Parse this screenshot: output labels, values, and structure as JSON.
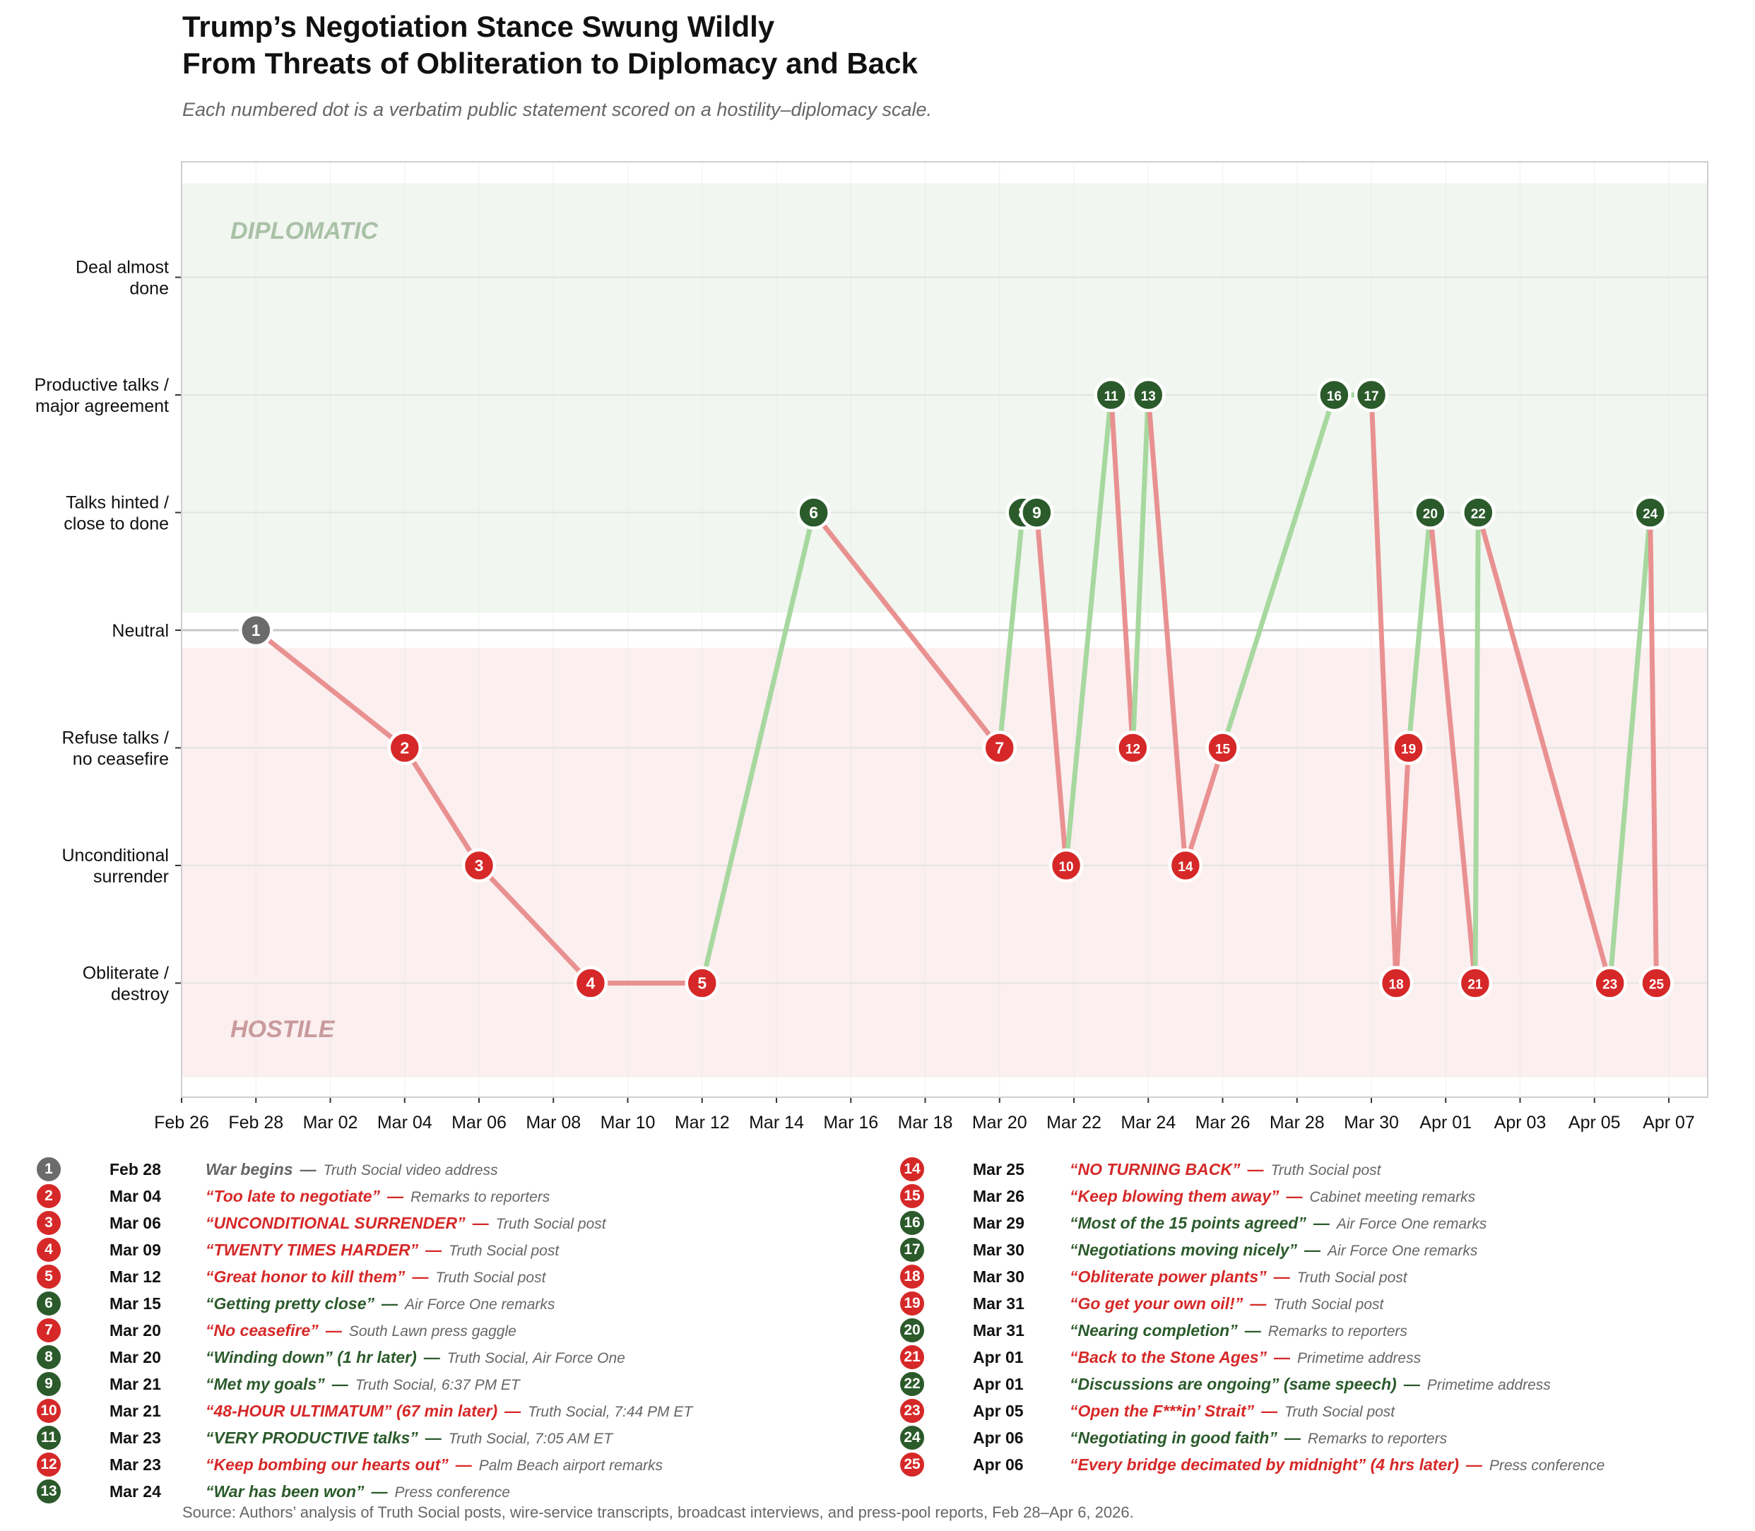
{
  "title_line1": "Trump’s Negotiation Stance Swung Wildly",
  "title_line2": "From Threats of Obliteration to Diplomacy and Back",
  "subtitle": "Each numbered dot is a verbatim public statement scored on a hostility–diplomacy scale.",
  "source": "Source: Authors’ analysis of Truth Social posts, wire-service transcripts, broadcast interviews, and press-pool reports, Feb 28–Apr 6, 2026.",
  "colors": {
    "hostile": "#d62828",
    "diplomatic": "#2b5a2b",
    "neutral": "#6b6b6b",
    "hostile_line": "#e88b8b",
    "diplomatic_line": "#a2d69a",
    "hostile_band": "#fbeff0",
    "diplomatic_band": "#f1f6f0"
  },
  "chart_data": {
    "type": "line",
    "title": "Trump’s Negotiation Stance Swung Wildly From Threats of Obliteration to Diplomacy and Back",
    "xlim": [
      "2026-02-26",
      "2026-04-07"
    ],
    "x_ticks": [
      "Feb 26",
      "Feb 28",
      "Mar 02",
      "Mar 04",
      "Mar 06",
      "Mar 08",
      "Mar 10",
      "Mar 12",
      "Mar 14",
      "Mar 16",
      "Mar 18",
      "Mar 20",
      "Mar 22",
      "Mar 24",
      "Mar 26",
      "Mar 28",
      "Mar 30",
      "Apr 01",
      "Apr 03",
      "Apr 05",
      "Apr 07"
    ],
    "y_levels": [
      {
        "value": 3,
        "label": "Deal almost\ndone"
      },
      {
        "value": 2,
        "label": "Productive talks /\nmajor agreement"
      },
      {
        "value": 1,
        "label": "Talks hinted /\nclose to done"
      },
      {
        "value": 0,
        "label": "Neutral"
      },
      {
        "value": -1,
        "label": "Refuse talks /\nno ceasefire"
      },
      {
        "value": -2,
        "label": "Unconditional\nsurrender"
      },
      {
        "value": -3,
        "label": "Obliterate /\ndestroy"
      }
    ],
    "zones": [
      {
        "label": "DIPLOMATIC",
        "range": [
          0.15,
          3.8
        ],
        "tone": "diplomatic"
      },
      {
        "label": "HOSTILE",
        "range": [
          -3.8,
          -0.15
        ],
        "tone": "hostile"
      }
    ],
    "grid": true,
    "points": [
      {
        "n": 1,
        "x": "2026-02-28T00:00",
        "y": 0,
        "tone": "neutral",
        "date": "Feb 28",
        "quote": "War begins",
        "src": "Truth Social video address"
      },
      {
        "n": 2,
        "x": "2026-03-04T00:00",
        "y": -1,
        "tone": "hostile",
        "date": "Mar 04",
        "quote": "“Too late to negotiate”",
        "src": "Remarks to reporters"
      },
      {
        "n": 3,
        "x": "2026-03-06T00:00",
        "y": -2,
        "tone": "hostile",
        "date": "Mar 06",
        "quote": "“UNCONDITIONAL SURRENDER”",
        "src": "Truth Social post"
      },
      {
        "n": 4,
        "x": "2026-03-09T00:00",
        "y": -3,
        "tone": "hostile",
        "date": "Mar 09",
        "quote": "“TWENTY TIMES HARDER”",
        "src": "Truth Social post"
      },
      {
        "n": 5,
        "x": "2026-03-12T00:00",
        "y": -3,
        "tone": "hostile",
        "date": "Mar 12",
        "quote": "“Great honor to kill them”",
        "src": "Truth Social post"
      },
      {
        "n": 6,
        "x": "2026-03-15T00:00",
        "y": 1,
        "tone": "diplomatic",
        "date": "Mar 15",
        "quote": "“Getting pretty close”",
        "src": "Air Force One remarks"
      },
      {
        "n": 7,
        "x": "2026-03-20T00:00",
        "y": -1,
        "tone": "hostile",
        "date": "Mar 20",
        "quote": "“No ceasefire”",
        "src": "South Lawn press gaggle"
      },
      {
        "n": 8,
        "x": "2026-03-20T15:00",
        "y": 1,
        "tone": "diplomatic",
        "date": "Mar 20",
        "quote": "“Winding down” (1 hr later)",
        "src": "Truth Social, Air Force One"
      },
      {
        "n": 9,
        "x": "2026-03-21T00:00",
        "y": 1,
        "tone": "diplomatic",
        "date": "Mar 21",
        "quote": "“Met my goals”",
        "src": "Truth Social, 6:37 PM ET"
      },
      {
        "n": 10,
        "x": "2026-03-21T19:00",
        "y": -2,
        "tone": "hostile",
        "date": "Mar 21",
        "quote": "“48-HOUR ULTIMATUM” (67 min later)",
        "src": "Truth Social, 7:44 PM ET"
      },
      {
        "n": 11,
        "x": "2026-03-23T00:00",
        "y": 2,
        "tone": "diplomatic",
        "date": "Mar 23",
        "quote": "“VERY PRODUCTIVE talks”",
        "src": "Truth Social, 7:05 AM ET"
      },
      {
        "n": 12,
        "x": "2026-03-23T14:00",
        "y": -1,
        "tone": "hostile",
        "date": "Mar 23",
        "quote": "“Keep bombing our hearts out”",
        "src": "Palm Beach airport remarks"
      },
      {
        "n": 13,
        "x": "2026-03-24T00:00",
        "y": 2,
        "tone": "diplomatic",
        "date": "Mar 24",
        "quote": "“War has been won”",
        "src": "Press conference"
      },
      {
        "n": 14,
        "x": "2026-03-25T00:00",
        "y": -2,
        "tone": "hostile",
        "date": "Mar 25",
        "quote": "“NO TURNING BACK”",
        "src": "Truth Social post"
      },
      {
        "n": 15,
        "x": "2026-03-26T00:00",
        "y": -1,
        "tone": "hostile",
        "date": "Mar 26",
        "quote": "“Keep blowing them away”",
        "src": "Cabinet meeting remarks"
      },
      {
        "n": 16,
        "x": "2026-03-29T00:00",
        "y": 2,
        "tone": "diplomatic",
        "date": "Mar 29",
        "quote": "“Most of the 15 points agreed”",
        "src": "Air Force One remarks"
      },
      {
        "n": 17,
        "x": "2026-03-30T00:00",
        "y": 2,
        "tone": "diplomatic",
        "date": "Mar 30",
        "quote": "“Negotiations moving nicely”",
        "src": "Air Force One remarks"
      },
      {
        "n": 18,
        "x": "2026-03-30T16:00",
        "y": -3,
        "tone": "hostile",
        "date": "Mar 30",
        "quote": "“Obliterate power plants”",
        "src": "Truth Social post"
      },
      {
        "n": 19,
        "x": "2026-03-31T00:00",
        "y": -1,
        "tone": "hostile",
        "date": "Mar 31",
        "quote": "“Go get your own oil!”",
        "src": "Truth Social post"
      },
      {
        "n": 20,
        "x": "2026-03-31T14:00",
        "y": 1,
        "tone": "diplomatic",
        "date": "Mar 31",
        "quote": "“Nearing completion”",
        "src": "Remarks to reporters"
      },
      {
        "n": 21,
        "x": "2026-04-01T19:00",
        "y": -3,
        "tone": "hostile",
        "date": "Apr 01",
        "quote": "“Back to the Stone Ages”",
        "src": "Primetime address"
      },
      {
        "n": 22,
        "x": "2026-04-01T21:00",
        "y": 1,
        "tone": "diplomatic",
        "date": "Apr 01",
        "quote": "“Discussions are ongoing” (same speech)",
        "src": "Primetime address"
      },
      {
        "n": 23,
        "x": "2026-04-05T10:00",
        "y": -3,
        "tone": "hostile",
        "date": "Apr 05",
        "quote": "“Open the F***in’ Strait”",
        "src": "Truth Social post"
      },
      {
        "n": 24,
        "x": "2026-04-06T12:00",
        "y": 1,
        "tone": "diplomatic",
        "date": "Apr 06",
        "quote": "“Negotiating in good faith”",
        "src": "Remarks to reporters"
      },
      {
        "n": 25,
        "x": "2026-04-06T16:00",
        "y": -3,
        "tone": "hostile",
        "date": "Apr 06",
        "quote": "“Every bridge decimated by midnight” (4 hrs later)",
        "src": "Press conference"
      }
    ]
  }
}
